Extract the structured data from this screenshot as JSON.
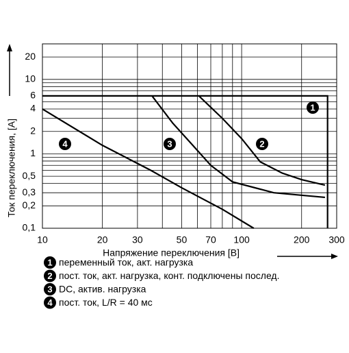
{
  "chart_data": {
    "type": "line",
    "log_x": true,
    "log_y": true,
    "grid": true,
    "xlabel": "Напряжение переключения [B]",
    "ylabel": "Ток переключения, [A]",
    "xlim": [
      10,
      300
    ],
    "ylim": [
      0.1,
      30
    ],
    "xticks": [
      10,
      20,
      30,
      50,
      70,
      100,
      200,
      300
    ],
    "xminor": [
      40,
      60,
      80,
      90
    ],
    "yticks": [
      {
        "value": 0.1,
        "label": "0,1"
      },
      {
        "value": 0.2,
        "label": "0,2"
      },
      {
        "value": 0.3,
        "label": "0,3"
      },
      {
        "value": 0.5,
        "label": "0,5"
      },
      1,
      2,
      4,
      6,
      10,
      20
    ],
    "yminor": [
      0.4,
      0.6,
      0.7,
      0.8,
      0.9,
      3,
      5,
      7,
      8,
      9,
      30
    ],
    "series": [
      {
        "name": "1",
        "description": "переменный ток, акт. нагрузка",
        "color": "#000000",
        "x": [
          10,
          270,
          270
        ],
        "values": [
          6,
          6,
          0.1
        ]
      },
      {
        "name": "2",
        "description": "пост. ток, акт. нагрузка, конт. подключены послед.",
        "color": "#000000",
        "x": [
          61,
          80,
          100,
          124,
          160,
          200,
          262
        ],
        "values": [
          6,
          3,
          1.6,
          0.78,
          0.55,
          0.45,
          0.38
        ]
      },
      {
        "name": "3",
        "description": "DC, актив. нагрузка",
        "color": "#000000",
        "x": [
          35.5,
          45,
          56,
          70,
          90,
          145,
          262
        ],
        "values": [
          6,
          2.6,
          1.36,
          0.7,
          0.42,
          0.3,
          0.26
        ]
      },
      {
        "name": "4",
        "description": "пост. ток, L/R = 40 мс",
        "color": "#000000",
        "x": [
          10,
          20,
          35,
          50,
          80,
          115
        ],
        "values": [
          4,
          1.3,
          0.6,
          0.35,
          0.18,
          0.1
        ]
      }
    ]
  }
}
